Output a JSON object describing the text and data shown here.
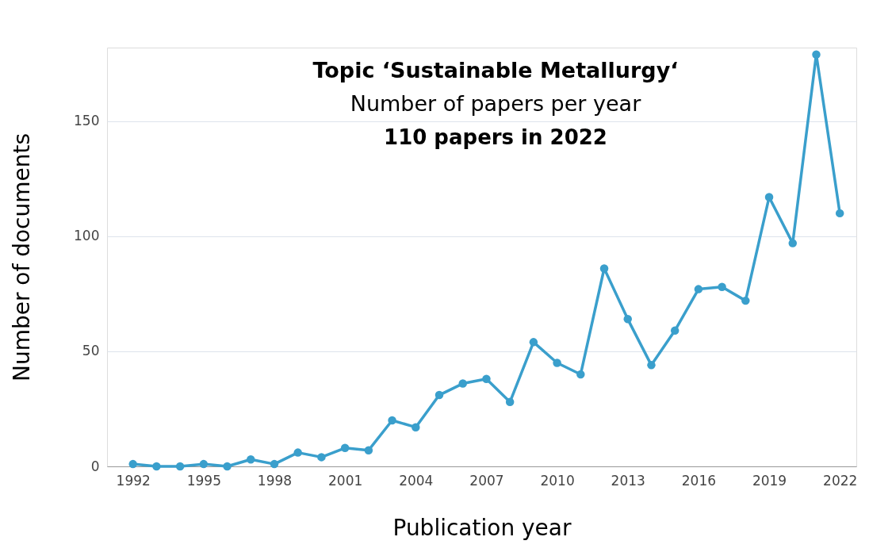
{
  "chart_data": {
    "type": "line",
    "xlabel": "Publication year",
    "ylabel": "Number of documents",
    "annotations": [
      "Topic ‘Sustainable Metallurgy‘",
      "Number of papers per year",
      "110 papers in 2022"
    ],
    "x": [
      1992,
      1993,
      1994,
      1995,
      1996,
      1997,
      1998,
      1999,
      2000,
      2001,
      2002,
      2003,
      2004,
      2005,
      2006,
      2007,
      2008,
      2009,
      2010,
      2011,
      2012,
      2013,
      2014,
      2015,
      2016,
      2017,
      2018,
      2019,
      2020,
      2021,
      2022
    ],
    "series": [
      {
        "color": "#3a9fcc",
        "values": [
          1,
          0,
          0,
          1,
          0,
          3,
          1,
          6,
          4,
          8,
          7,
          20,
          17,
          31,
          36,
          38,
          28,
          54,
          45,
          40,
          86,
          64,
          44,
          59,
          77,
          78,
          72,
          117,
          97,
          179,
          110
        ]
      }
    ],
    "xlim": [
      1990.9,
      2022.7
    ],
    "xticks": [
      1992,
      1995,
      1998,
      2001,
      2004,
      2007,
      2010,
      2013,
      2016,
      2019,
      2022
    ],
    "ylim": [
      0,
      182
    ],
    "yticks": [
      0,
      50,
      100,
      150
    ],
    "grid": "y",
    "marker": "circle",
    "line_style": "solid"
  }
}
